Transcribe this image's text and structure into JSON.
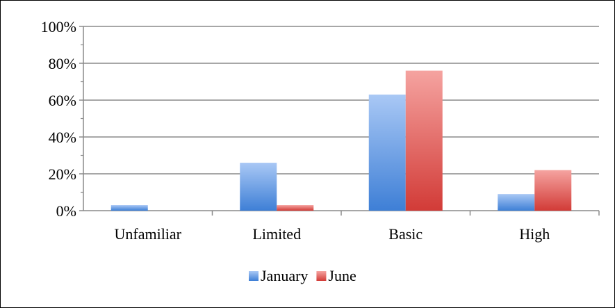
{
  "chart_data": {
    "type": "bar",
    "categories": [
      "Unfamiliar",
      "Limited",
      "Basic",
      "High"
    ],
    "series": [
      {
        "name": "January",
        "values": [
          3,
          26,
          63,
          9
        ],
        "color": "#4a86d8"
      },
      {
        "name": "June",
        "values": [
          0,
          3,
          76,
          22
        ],
        "color": "#d9433f"
      }
    ],
    "title": "",
    "xlabel": "",
    "ylabel": "",
    "ylim": [
      0,
      100
    ],
    "yticks": [
      "0%",
      "20%",
      "40%",
      "60%",
      "80%",
      "100%"
    ],
    "grid": true,
    "legend_position": "bottom"
  }
}
